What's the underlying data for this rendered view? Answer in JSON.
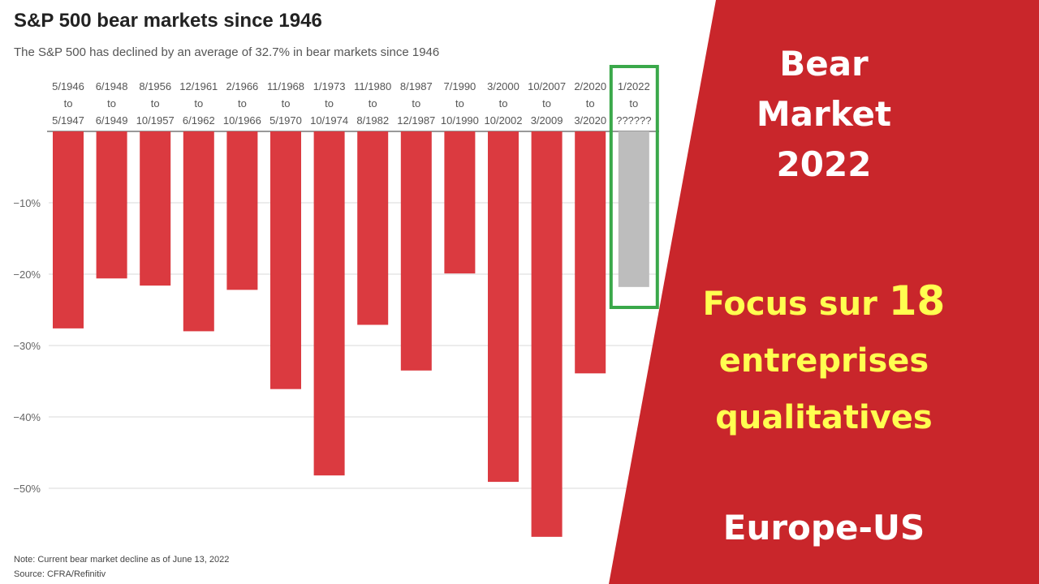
{
  "chart_data": {
    "type": "bar",
    "title": "S&P 500 bear markets since 1946",
    "subtitle": "The S&P 500 has declined by an average of 32.7% in bear markets since 1946",
    "categories": [
      [
        "5/1946",
        "to",
        "5/1947"
      ],
      [
        "6/1948",
        "to",
        "6/1949"
      ],
      [
        "8/1956",
        "to",
        "10/1957"
      ],
      [
        "12/1961",
        "to",
        "6/1962"
      ],
      [
        "2/1966",
        "to",
        "10/1966"
      ],
      [
        "11/1968",
        "to",
        "5/1970"
      ],
      [
        "1/1973",
        "to",
        "10/1974"
      ],
      [
        "11/1980",
        "to",
        "8/1982"
      ],
      [
        "8/1987",
        "to",
        "12/1987"
      ],
      [
        "7/1990",
        "to",
        "10/1990"
      ],
      [
        "3/2000",
        "to",
        "10/2002"
      ],
      [
        "10/2007",
        "to",
        "3/2009"
      ],
      [
        "2/2020",
        "to",
        "3/2020"
      ],
      [
        "1/2022",
        "to",
        "??????"
      ]
    ],
    "values": [
      -27.6,
      -20.6,
      -21.6,
      -28.0,
      -22.2,
      -36.1,
      -48.2,
      -27.1,
      -33.5,
      -19.9,
      -49.1,
      -56.8,
      -33.9,
      -21.8
    ],
    "highlight_index": 13,
    "yticks": [
      -10,
      -20,
      -30,
      -40,
      -50
    ],
    "ytick_labels": [
      "−10%",
      "−20%",
      "−30%",
      "−40%",
      "−50%"
    ],
    "ylim": [
      -60,
      0
    ],
    "grid": true,
    "colors": {
      "bar": "#db3a40",
      "highlight_bar": "#bdbdbd",
      "highlight_box": "#3aa84a",
      "grid": "#d9d9d9"
    }
  },
  "note": "Note: Current bear market decline as of June 13, 2022",
  "source": "Source: CFRA/Refinitiv",
  "panel": {
    "color": "#c9262b",
    "title_lines": [
      "Bear",
      "Market",
      "2022"
    ],
    "focus_prefix": "Focus sur ",
    "focus_number": "18",
    "focus_lines": [
      "entreprises",
      "qualitatives"
    ],
    "region": "Europe-US"
  }
}
